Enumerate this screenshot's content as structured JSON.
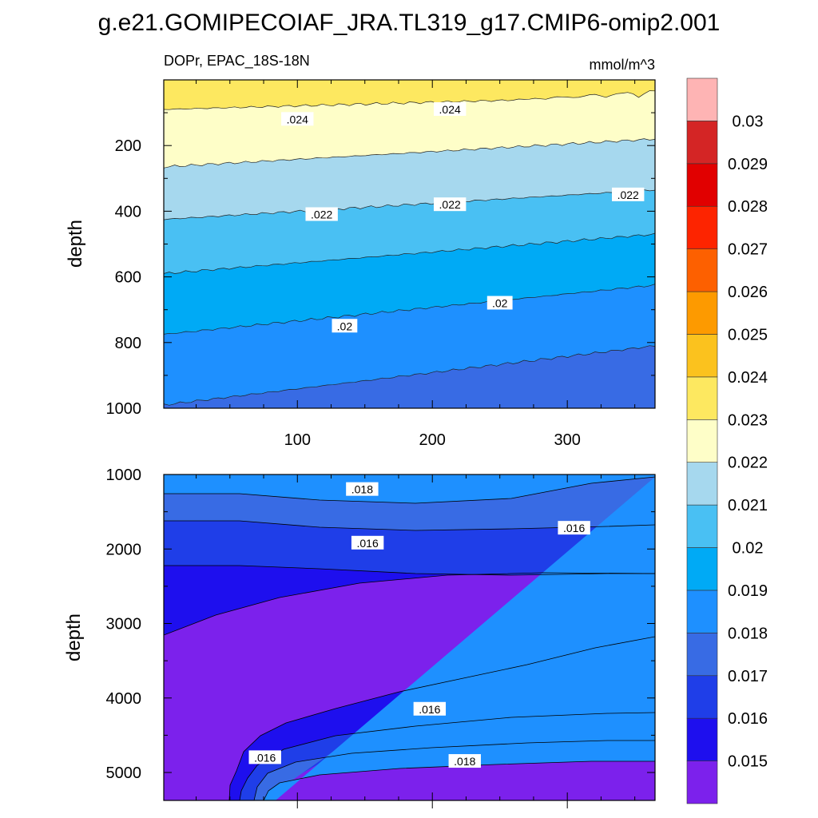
{
  "title": "g.e21.GOMIPECOIAF_JRA.TL319_g17.CMIP6-omip2.001",
  "chart_data": {
    "type": "contour",
    "variable_label": "DOPr, EPAC_18S-18N",
    "units": "mmol/m^3",
    "x_range": [
      1,
      365
    ],
    "x_ticks": [
      "100",
      "200",
      "300"
    ],
    "panels": [
      {
        "name": "upper",
        "ylabel": "depth",
        "ylim": [
          0,
          1000
        ],
        "y_ticks": [
          "200",
          "400",
          "600",
          "800",
          "1000"
        ],
        "boundaries": [
          {
            "level": 0.024,
            "depth_start": 90,
            "depth_end": 50
          },
          {
            "level": 0.023,
            "depth_start": 265,
            "depth_end": 180
          },
          {
            "level": 0.022,
            "depth_start": 425,
            "depth_end": 335
          },
          {
            "level": 0.021,
            "depth_start": 590,
            "depth_end": 470
          },
          {
            "level": 0.02,
            "depth_start": 775,
            "depth_end": 625
          },
          {
            "level": 0.019,
            "depth_start": 990,
            "depth_end": 810
          }
        ],
        "contour_labels": [
          {
            "text": ".024",
            "x": 100,
            "depth": 120
          },
          {
            "text": ".024",
            "x": 213,
            "depth": 90
          },
          {
            "text": ".022",
            "x": 118,
            "depth": 410
          },
          {
            "text": ".022",
            "x": 213,
            "depth": 380
          },
          {
            "text": ".022",
            "x": 345,
            "depth": 350
          },
          {
            "text": ".02",
            "x": 135,
            "depth": 750
          },
          {
            "text": ".02",
            "x": 250,
            "depth": 680
          }
        ]
      },
      {
        "name": "lower",
        "ylabel": "depth",
        "ylim": [
          1000,
          5375
        ],
        "y_ticks": [
          "1000",
          "2000",
          "3000",
          "4000",
          "5000"
        ],
        "contour_labels": [
          {
            "text": ".018",
            "x": 148,
            "depth": 1200
          },
          {
            "text": ".016",
            "x": 152,
            "depth": 1920
          },
          {
            "text": ".016",
            "x": 305,
            "depth": 1720
          },
          {
            "text": ".016",
            "x": 198,
            "depth": 4150
          },
          {
            "text": ".016",
            "x": 76,
            "depth": 4800
          },
          {
            "text": ".018",
            "x": 224,
            "depth": 4850
          }
        ]
      }
    ],
    "colorbar": {
      "levels": [
        "0.015",
        "0.016",
        "0.017",
        "0.018",
        "0.019",
        "0.02",
        "0.021",
        "0.022",
        "0.023",
        "0.024",
        "0.025",
        "0.026",
        "0.027",
        "0.028",
        "0.029",
        "0.03"
      ],
      "colors": [
        "#7c21ec",
        "#1e0fee",
        "#1f3ee8",
        "#386be4",
        "#1e90ff",
        "#00aaf5",
        "#49c0f3",
        "#a6d8ee",
        "#fefec8",
        "#fde860",
        "#fbc21e",
        "#fd9a00",
        "#fd6000",
        "#fd2400",
        "#e10000",
        "#d42525",
        "#feb4b4"
      ]
    }
  }
}
